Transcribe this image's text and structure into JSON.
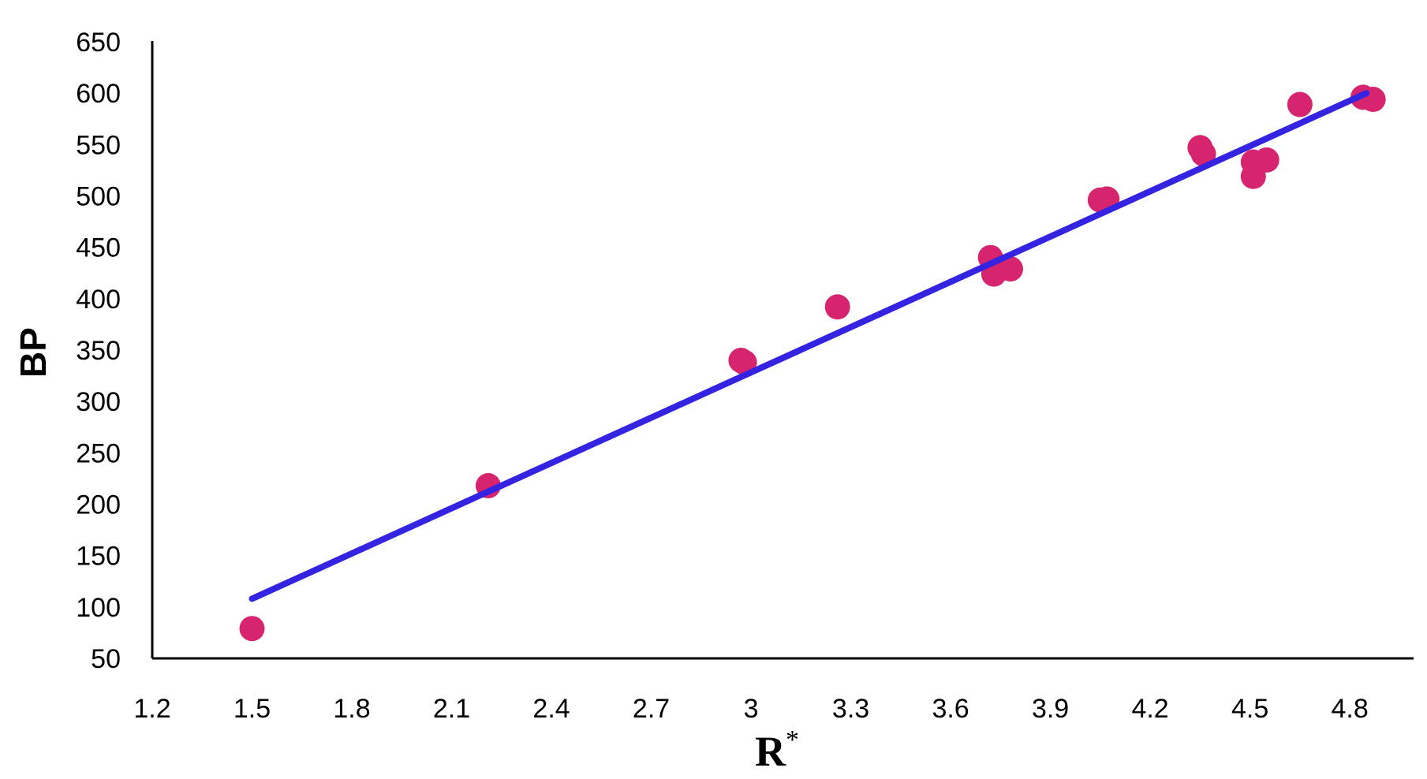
{
  "colors": {
    "points": "#D6246E",
    "trendline": "#3423E0",
    "axis": "#000000"
  },
  "chart_data": {
    "type": "scatter",
    "title": "",
    "xlabel": "R",
    "xlabel_superscript": "*",
    "ylabel": "BP",
    "xlim": [
      1.2,
      4.95
    ],
    "ylim": [
      50,
      650
    ],
    "x_ticks": [
      "1.2",
      "1.5",
      "1.8",
      "2.1",
      "2.4",
      "2.7",
      "3",
      "3.3",
      "3.6",
      "3.9",
      "4.2",
      "4.5",
      "4.8"
    ],
    "y_ticks": [
      "50",
      "100",
      "150",
      "200",
      "250",
      "300",
      "350",
      "400",
      "450",
      "500",
      "550",
      "600",
      "650"
    ],
    "grid": false,
    "legend": "none",
    "series": [
      {
        "points": [
          {
            "x": 1.5,
            "y": 79
          },
          {
            "x": 2.21,
            "y": 218
          },
          {
            "x": 2.97,
            "y": 340
          },
          {
            "x": 2.98,
            "y": 338
          },
          {
            "x": 3.26,
            "y": 392
          },
          {
            "x": 3.72,
            "y": 440
          },
          {
            "x": 3.73,
            "y": 424
          },
          {
            "x": 3.78,
            "y": 429
          },
          {
            "x": 4.05,
            "y": 496
          },
          {
            "x": 4.07,
            "y": 497
          },
          {
            "x": 4.35,
            "y": 547
          },
          {
            "x": 4.36,
            "y": 541
          },
          {
            "x": 4.51,
            "y": 533
          },
          {
            "x": 4.51,
            "y": 519
          },
          {
            "x": 4.55,
            "y": 535
          },
          {
            "x": 4.65,
            "y": 589
          },
          {
            "x": 4.84,
            "y": 596
          },
          {
            "x": 4.87,
            "y": 594
          }
        ]
      }
    ],
    "trendline": {
      "type": "linear",
      "x": [
        1.5,
        4.85
      ],
      "y": [
        108,
        600
      ]
    }
  }
}
